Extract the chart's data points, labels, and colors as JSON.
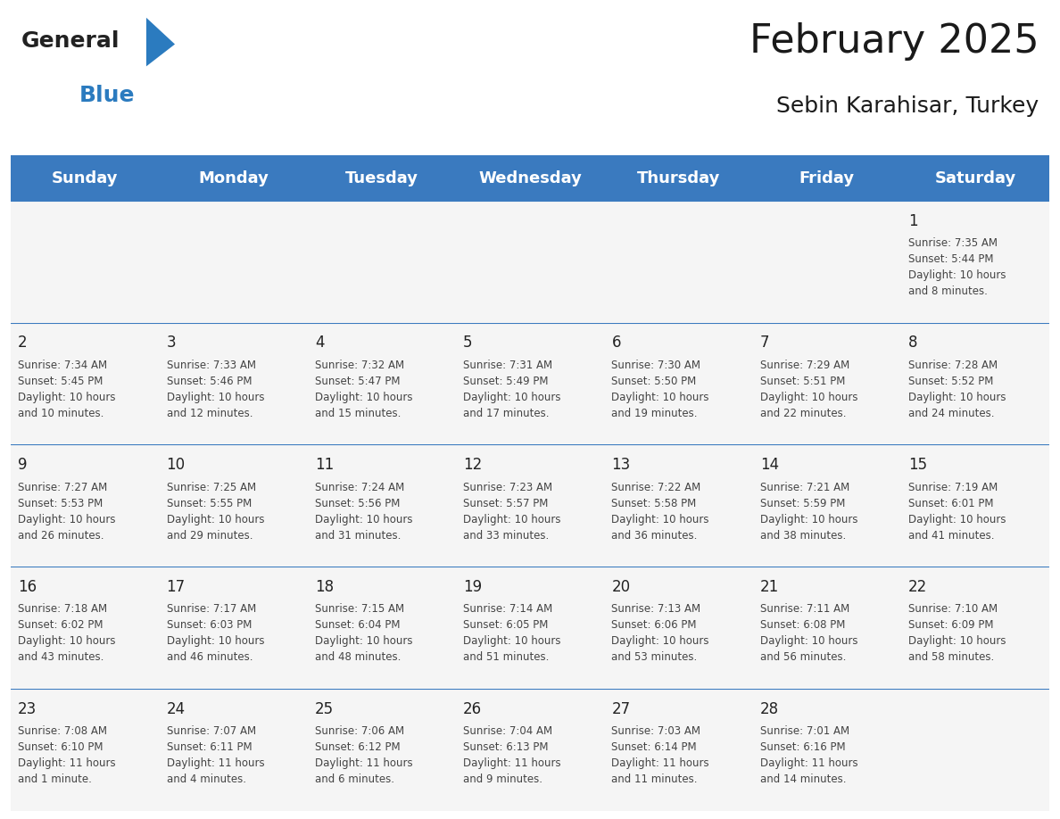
{
  "title": "February 2025",
  "subtitle": "Sebin Karahisar, Turkey",
  "header_color": "#3a7abf",
  "header_text_color": "#ffffff",
  "cell_bg_color": "#f0f0f0",
  "cell_bg_alt": "#ffffff",
  "border_color": "#3a7abf",
  "text_color": "#333333",
  "days_of_week": [
    "Sunday",
    "Monday",
    "Tuesday",
    "Wednesday",
    "Thursday",
    "Friday",
    "Saturday"
  ],
  "logo_general_color": "#222222",
  "logo_blue_color": "#2b7bbf",
  "calendar": [
    [
      null,
      null,
      null,
      null,
      null,
      null,
      {
        "day": 1,
        "sunrise": "7:35 AM",
        "sunset": "5:44 PM",
        "daylight": "10 hours\nand 8 minutes."
      }
    ],
    [
      {
        "day": 2,
        "sunrise": "7:34 AM",
        "sunset": "5:45 PM",
        "daylight": "10 hours\nand 10 minutes."
      },
      {
        "day": 3,
        "sunrise": "7:33 AM",
        "sunset": "5:46 PM",
        "daylight": "10 hours\nand 12 minutes."
      },
      {
        "day": 4,
        "sunrise": "7:32 AM",
        "sunset": "5:47 PM",
        "daylight": "10 hours\nand 15 minutes."
      },
      {
        "day": 5,
        "sunrise": "7:31 AM",
        "sunset": "5:49 PM",
        "daylight": "10 hours\nand 17 minutes."
      },
      {
        "day": 6,
        "sunrise": "7:30 AM",
        "sunset": "5:50 PM",
        "daylight": "10 hours\nand 19 minutes."
      },
      {
        "day": 7,
        "sunrise": "7:29 AM",
        "sunset": "5:51 PM",
        "daylight": "10 hours\nand 22 minutes."
      },
      {
        "day": 8,
        "sunrise": "7:28 AM",
        "sunset": "5:52 PM",
        "daylight": "10 hours\nand 24 minutes."
      }
    ],
    [
      {
        "day": 9,
        "sunrise": "7:27 AM",
        "sunset": "5:53 PM",
        "daylight": "10 hours\nand 26 minutes."
      },
      {
        "day": 10,
        "sunrise": "7:25 AM",
        "sunset": "5:55 PM",
        "daylight": "10 hours\nand 29 minutes."
      },
      {
        "day": 11,
        "sunrise": "7:24 AM",
        "sunset": "5:56 PM",
        "daylight": "10 hours\nand 31 minutes."
      },
      {
        "day": 12,
        "sunrise": "7:23 AM",
        "sunset": "5:57 PM",
        "daylight": "10 hours\nand 33 minutes."
      },
      {
        "day": 13,
        "sunrise": "7:22 AM",
        "sunset": "5:58 PM",
        "daylight": "10 hours\nand 36 minutes."
      },
      {
        "day": 14,
        "sunrise": "7:21 AM",
        "sunset": "5:59 PM",
        "daylight": "10 hours\nand 38 minutes."
      },
      {
        "day": 15,
        "sunrise": "7:19 AM",
        "sunset": "6:01 PM",
        "daylight": "10 hours\nand 41 minutes."
      }
    ],
    [
      {
        "day": 16,
        "sunrise": "7:18 AM",
        "sunset": "6:02 PM",
        "daylight": "10 hours\nand 43 minutes."
      },
      {
        "day": 17,
        "sunrise": "7:17 AM",
        "sunset": "6:03 PM",
        "daylight": "10 hours\nand 46 minutes."
      },
      {
        "day": 18,
        "sunrise": "7:15 AM",
        "sunset": "6:04 PM",
        "daylight": "10 hours\nand 48 minutes."
      },
      {
        "day": 19,
        "sunrise": "7:14 AM",
        "sunset": "6:05 PM",
        "daylight": "10 hours\nand 51 minutes."
      },
      {
        "day": 20,
        "sunrise": "7:13 AM",
        "sunset": "6:06 PM",
        "daylight": "10 hours\nand 53 minutes."
      },
      {
        "day": 21,
        "sunrise": "7:11 AM",
        "sunset": "6:08 PM",
        "daylight": "10 hours\nand 56 minutes."
      },
      {
        "day": 22,
        "sunrise": "7:10 AM",
        "sunset": "6:09 PM",
        "daylight": "10 hours\nand 58 minutes."
      }
    ],
    [
      {
        "day": 23,
        "sunrise": "7:08 AM",
        "sunset": "6:10 PM",
        "daylight": "11 hours\nand 1 minute."
      },
      {
        "day": 24,
        "sunrise": "7:07 AM",
        "sunset": "6:11 PM",
        "daylight": "11 hours\nand 4 minutes."
      },
      {
        "day": 25,
        "sunrise": "7:06 AM",
        "sunset": "6:12 PM",
        "daylight": "11 hours\nand 6 minutes."
      },
      {
        "day": 26,
        "sunrise": "7:04 AM",
        "sunset": "6:13 PM",
        "daylight": "11 hours\nand 9 minutes."
      },
      {
        "day": 27,
        "sunrise": "7:03 AM",
        "sunset": "6:14 PM",
        "daylight": "11 hours\nand 11 minutes."
      },
      {
        "day": 28,
        "sunrise": "7:01 AM",
        "sunset": "6:16 PM",
        "daylight": "11 hours\nand 14 minutes."
      },
      null
    ]
  ]
}
